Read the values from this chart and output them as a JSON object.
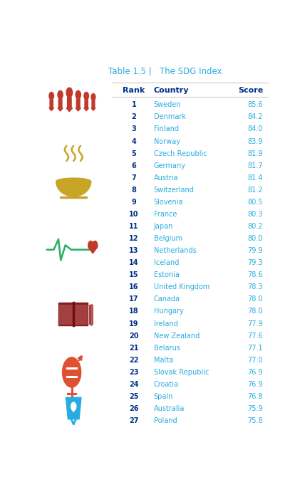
{
  "title": "Table 1.5 |   The SDG Index",
  "title_color": "#29ABE2",
  "header_rank": "Rank",
  "header_country": "Country",
  "header_score": "Score",
  "header_color": "#003087",
  "rows": [
    {
      "rank": 1,
      "country": "Sweden",
      "score": "85.6"
    },
    {
      "rank": 2,
      "country": "Denmark",
      "score": "84.2"
    },
    {
      "rank": 3,
      "country": "Finland",
      "score": "84.0"
    },
    {
      "rank": 4,
      "country": "Norway",
      "score": "83.9"
    },
    {
      "rank": 5,
      "country": "Czech Republic",
      "score": "81.9"
    },
    {
      "rank": 6,
      "country": "Germany",
      "score": "81.7"
    },
    {
      "rank": 7,
      "country": "Austria",
      "score": "81.4"
    },
    {
      "rank": 8,
      "country": "Switzerland",
      "score": "81.2"
    },
    {
      "rank": 9,
      "country": "Slovenia",
      "score": "80.5"
    },
    {
      "rank": 10,
      "country": "France",
      "score": "80.3"
    },
    {
      "rank": 11,
      "country": "Japan",
      "score": "80.2"
    },
    {
      "rank": 12,
      "country": "Belgium",
      "score": "80.0"
    },
    {
      "rank": 13,
      "country": "Netherlands",
      "score": "79.9"
    },
    {
      "rank": 14,
      "country": "Iceland",
      "score": "79.3"
    },
    {
      "rank": 15,
      "country": "Estonia",
      "score": "78.6"
    },
    {
      "rank": 16,
      "country": "United Kingdom",
      "score": "78.3"
    },
    {
      "rank": 17,
      "country": "Canada",
      "score": "78.0"
    },
    {
      "rank": 18,
      "country": "Hungary",
      "score": "78.0"
    },
    {
      "rank": 19,
      "country": "Ireland",
      "score": "77.9"
    },
    {
      "rank": 20,
      "country": "New Zealand",
      "score": "77.6"
    },
    {
      "rank": 21,
      "country": "Belarus",
      "score": "77.1"
    },
    {
      "rank": 22,
      "country": "Malta",
      "score": "77.0"
    },
    {
      "rank": 23,
      "country": "Slovak Republic",
      "score": "76.9"
    },
    {
      "rank": 24,
      "country": "Croatia",
      "score": "76.9"
    },
    {
      "rank": 25,
      "country": "Spain",
      "score": "76.8"
    },
    {
      "rank": 26,
      "country": "Australia",
      "score": "75.9"
    },
    {
      "rank": 27,
      "country": "Poland",
      "score": "75.8"
    }
  ],
  "rank_color": "#003087",
  "country_color": "#29ABE2",
  "score_color": "#29ABE2",
  "bg_color": "#FFFFFF",
  "line_color": "#CCCCCC",
  "icon_colors": {
    "people": "#C0392B",
    "food": "#C8A427",
    "health": "#27AE60",
    "education": "#8B1A1A",
    "gender": "#E05033",
    "water": "#29ABE2"
  }
}
